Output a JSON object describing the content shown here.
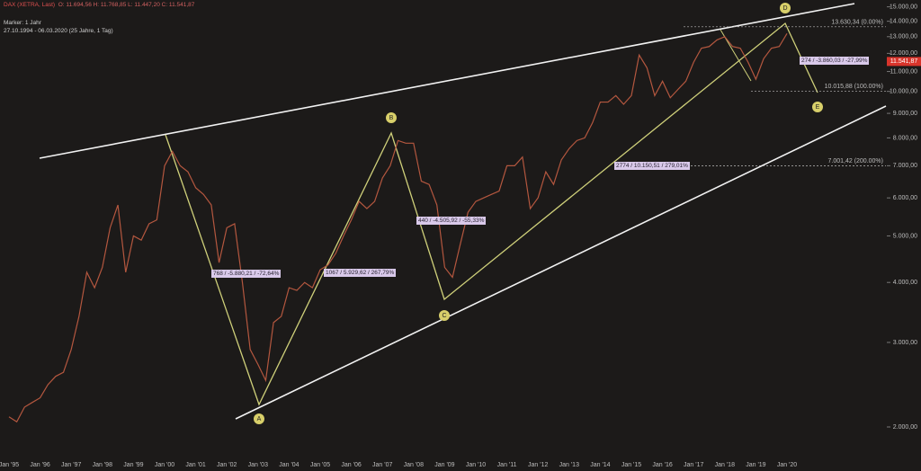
{
  "chart_data": {
    "type": "line",
    "title": "DAX (XETRA, Last)",
    "subtitle": "O: 11.694,56  H: 11.768,85  L: 11.447,20  C: 11.541,87",
    "marker": "Marker: 1 Jahr",
    "range": "27.10.1994 - 06.03.2020   (25 Jahre, 1 Tag)",
    "log": true,
    "ylim": [
      1720,
      15500
    ],
    "yticks": [
      {
        "value": 2000,
        "label": "2.000,00"
      },
      {
        "value": 3000,
        "label": "3.000,00"
      },
      {
        "value": 4000,
        "label": "4.000,00"
      },
      {
        "value": 5000,
        "label": "5.000,00"
      },
      {
        "value": 6000,
        "label": "6.000,00"
      },
      {
        "value": 7000,
        "label": "7.000,00"
      },
      {
        "value": 8000,
        "label": "8.000,00"
      },
      {
        "value": 9000,
        "label": "9.000,00"
      },
      {
        "value": 10000,
        "label": "10.000,00"
      },
      {
        "value": 11000,
        "label": "11.000,00"
      },
      {
        "value": 12000,
        "label": "12.000,00"
      },
      {
        "value": 13000,
        "label": "13.000,00"
      },
      {
        "value": 14000,
        "label": "14.000,00"
      },
      {
        "value": 15000,
        "label": "15.000,00"
      }
    ],
    "categories": [
      "Jan '95",
      null,
      null,
      null,
      "Jan '96",
      null,
      null,
      null,
      "Jan '97",
      null,
      null,
      null,
      "Jan '98",
      null,
      null,
      null,
      "Jan '99",
      null,
      null,
      null,
      "Jan '00",
      null,
      null,
      null,
      "Jan '01",
      null,
      null,
      null,
      "Jan '02",
      null,
      null,
      null,
      "Jan '03",
      null,
      null,
      null,
      "Jan '04",
      null,
      null,
      null,
      "Jan '05",
      null,
      null,
      null,
      "Jan '06",
      null,
      null,
      null,
      "Jan '07",
      null,
      null,
      null,
      "Jan '08",
      null,
      null,
      null,
      "Jan '09",
      null,
      null,
      null,
      "Jan '10",
      null,
      null,
      null,
      "Jan '11",
      null,
      null,
      null,
      "Jan '12",
      null,
      null,
      null,
      "Jan '13",
      null,
      null,
      null,
      "Jan '14",
      null,
      null,
      null,
      "Jan '15",
      null,
      null,
      null,
      "Jan '16",
      null,
      null,
      null,
      "Jan '17",
      null,
      null,
      null,
      "Jan '18",
      null,
      null,
      null,
      "Jan '19",
      null,
      null,
      null,
      "Jan '20"
    ],
    "series": [
      {
        "name": "DAX",
        "color": "#b4573f",
        "values": [
          2100,
          2050,
          2200,
          2250,
          2300,
          2450,
          2550,
          2600,
          2900,
          3400,
          4200,
          3900,
          4300,
          5200,
          5800,
          4200,
          5000,
          4900,
          5300,
          5400,
          7000,
          7500,
          7000,
          6800,
          6300,
          6100,
          5800,
          4400,
          5200,
          5300,
          4000,
          2900,
          2700,
          2500,
          3300,
          3400,
          3900,
          3850,
          4000,
          3900,
          4250,
          4350,
          4600,
          5000,
          5400,
          5900,
          5700,
          5900,
          6600,
          7000,
          7900,
          7800,
          7800,
          6500,
          6400,
          5800,
          4300,
          4100,
          4800,
          5600,
          5900,
          6000,
          6100,
          6200,
          7000,
          7000,
          7300,
          5700,
          6000,
          6800,
          6400,
          7200,
          7600,
          7900,
          8000,
          8600,
          9500,
          9500,
          9800,
          9400,
          9800,
          11900,
          11200,
          9800,
          10500,
          9700,
          10100,
          10500,
          11500,
          12300,
          12400,
          12800,
          13000,
          12400,
          12300,
          11500,
          10600,
          11700,
          12300,
          12400,
          13200
        ]
      }
    ],
    "last_price": {
      "value": 11541.87,
      "label": "11.541,87"
    },
    "levels": [
      {
        "value": 13630.34,
        "label": "13.630,34 (0.00%)"
      },
      {
        "value": 10015.88,
        "label": "10.015,88 (100.00%)"
      },
      {
        "value": 7001.42,
        "label": "7.001,42 (200.00%)"
      }
    ],
    "annotations": [
      "768 / -5.880,21 / -72,64%",
      "1067 / 5.929,62 / 267,79%",
      "440 / -4.505,92 / -55,33%",
      "2774 / 10.150,51 / 279,01%",
      "274 / -3.860,03 / -27,99%"
    ],
    "waves": [
      "A",
      "B",
      "C",
      "D",
      "E"
    ]
  }
}
